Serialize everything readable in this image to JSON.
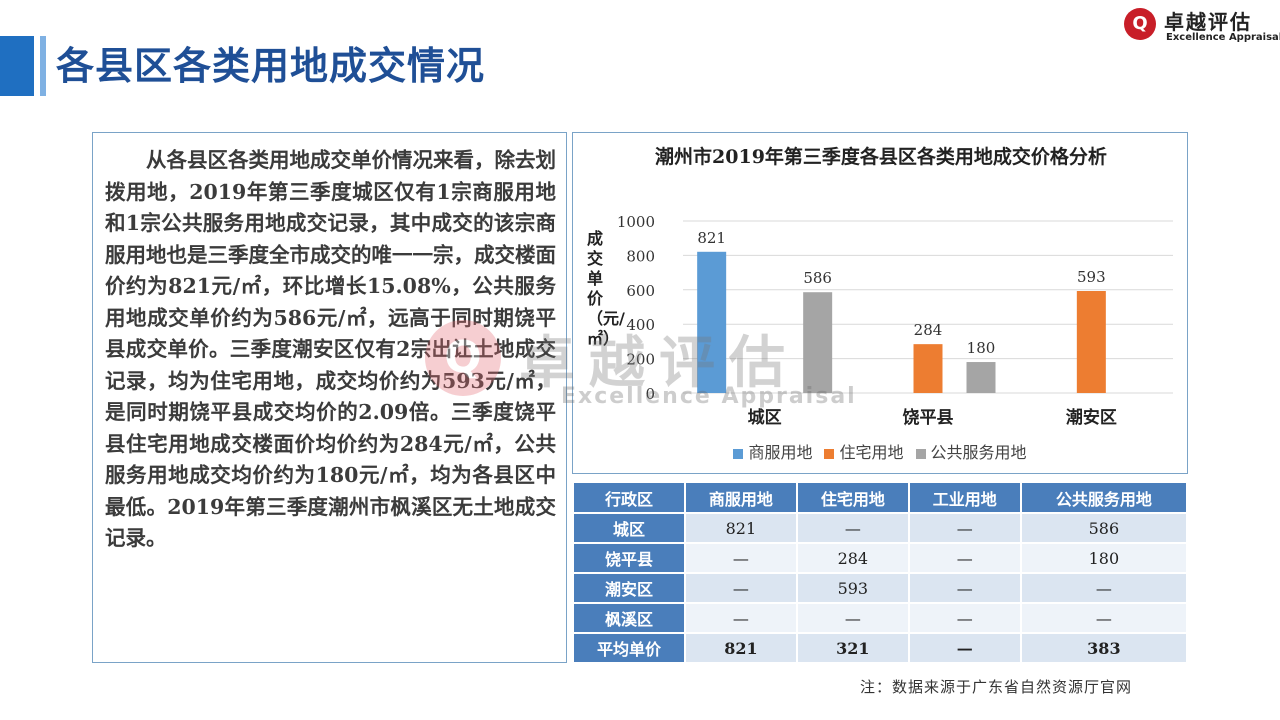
{
  "page_title": "各县区各类用地成交情况",
  "logo": {
    "mark": "Q",
    "cn": "卓越评估",
    "en": "Excellence Appraisal"
  },
  "body_text": "从各县区各类用地成交单价情况来看，除去划拨用地，2019年第三季度城区仅有1宗商服用地和1宗公共服务用地成交记录，其中成交的该宗商服用地也是三季度全市成交的唯一一宗，成交楼面价约为821元/㎡，环比增长15.08%，公共服务用地成交单价约为586元/㎡，远高于同时期饶平县成交单价。三季度潮安区仅有2宗出让土地成交记录，均为住宅用地，成交均价约为593元/㎡，是同时期饶平县成交均价的2.09倍。三季度饶平县住宅用地成交楼面价均价约为284元/㎡，公共服务用地成交均价约为180元/㎡，均为各县区中最低。2019年第三季度潮州市枫溪区无土地成交记录。",
  "chart_data": {
    "type": "bar",
    "title": "潮州市2019年第三季度各县区各类用地成交价格分析",
    "ylabel": "成交单价（元/㎡）",
    "xlabel": "",
    "ylim": [
      0,
      1000
    ],
    "yticks": [
      0,
      200,
      400,
      600,
      800,
      1000
    ],
    "categories": [
      "城区",
      "饶平县",
      "潮安区"
    ],
    "series": [
      {
        "name": "商服用地",
        "color": "#5b9bd5",
        "values": [
          821,
          null,
          null
        ]
      },
      {
        "name": "住宅用地",
        "color": "#ed7d31",
        "values": [
          null,
          284,
          593
        ]
      },
      {
        "name": "公共服务用地",
        "color": "#a5a5a5",
        "values": [
          586,
          180,
          null
        ]
      }
    ],
    "grid": true,
    "legend_position": "bottom"
  },
  "table": {
    "headers": [
      "行政区",
      "商服用地",
      "住宅用地",
      "工业用地",
      "公共服务用地"
    ],
    "rows": [
      [
        "城区",
        "821",
        "—",
        "—",
        "586"
      ],
      [
        "饶平县",
        "—",
        "284",
        "—",
        "180"
      ],
      [
        "潮安区",
        "—",
        "593",
        "—",
        "—"
      ],
      [
        "枫溪区",
        "—",
        "—",
        "—",
        "—"
      ],
      [
        "平均单价",
        "821",
        "321",
        "—",
        "383"
      ]
    ]
  },
  "note": "注：数据来源于广东省自然资源厅官网",
  "watermark": {
    "cn": "卓越评估",
    "en": "Excellence Appraisal"
  }
}
